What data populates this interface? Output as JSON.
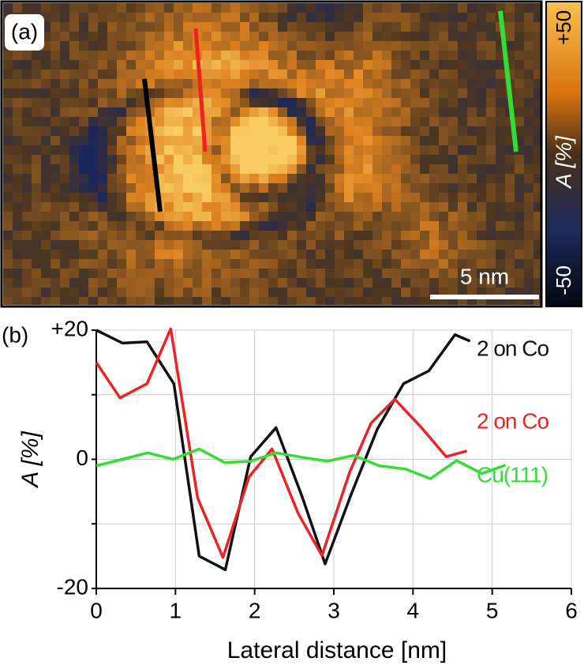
{
  "panel_a": {
    "label": "(a)",
    "scale_bar": "5 nm",
    "colorbar": {
      "label": "A [%]",
      "ticks": [
        {
          "value": 50,
          "label": "+50"
        },
        {
          "value": -50,
          "label": "-50"
        }
      ]
    }
  },
  "chart_data": {
    "type": "line",
    "panel_label": "(b)",
    "xlabel": "Lateral distance [nm]",
    "ylabel": "A [%]",
    "xlim": [
      0,
      6
    ],
    "xticks": [
      0,
      1,
      2,
      3,
      4,
      5,
      6
    ],
    "ylim": [
      -20,
      20
    ],
    "yticks": [
      -20,
      {
        "value": -10,
        "label": null
      },
      0,
      {
        "value": 10,
        "label": null
      },
      {
        "value": 20,
        "label": "+20"
      }
    ],
    "grid": true,
    "series": [
      {
        "name": "2 on Co",
        "color": "#111111",
        "x": [
          0,
          0.33,
          0.64,
          0.98,
          1.3,
          1.63,
          1.95,
          2.27,
          2.6,
          2.89,
          3.22,
          3.55,
          3.88,
          4.2,
          4.53,
          4.72
        ],
        "values": [
          20,
          18,
          18.2,
          11.7,
          -15,
          -17.1,
          0.4,
          4.9,
          -5.8,
          -16.2,
          -5.4,
          4.7,
          11.7,
          13.7,
          19.3,
          18.3
        ]
      },
      {
        "name": "2 on Co",
        "color": "#ee2222",
        "x": [
          0,
          0.3,
          0.64,
          0.94,
          1.28,
          1.6,
          1.93,
          2.22,
          2.55,
          2.85,
          3.2,
          3.47,
          3.77,
          4.1,
          4.42,
          4.68
        ],
        "values": [
          15,
          9.5,
          11.7,
          20.2,
          -6,
          -15.2,
          -2.7,
          1.6,
          -8.4,
          -14.9,
          -2,
          5.6,
          9.3,
          5,
          0.4,
          1.3
        ]
      },
      {
        "name": "Cu(111)",
        "color": "#33dd33",
        "x": [
          0,
          0.33,
          0.65,
          0.97,
          1.3,
          1.62,
          1.95,
          2.27,
          2.6,
          2.92,
          3.25,
          3.57,
          3.9,
          4.22,
          4.55,
          4.87,
          5.17
        ],
        "values": [
          -1,
          0,
          1,
          0,
          1.6,
          -0.5,
          -0.3,
          1,
          0.3,
          -0.3,
          0.6,
          -1,
          -1.5,
          -3,
          -0.2,
          -2.2,
          -0.9
        ]
      }
    ]
  }
}
